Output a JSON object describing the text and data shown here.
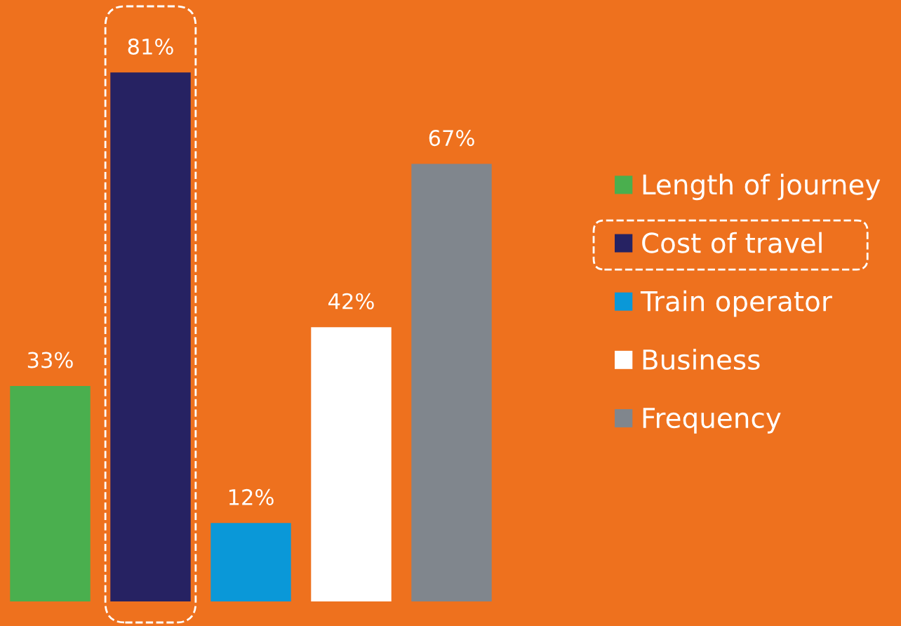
{
  "chart_data": {
    "type": "bar",
    "categories": [
      null,
      null,
      null,
      null,
      null
    ],
    "legend": "right",
    "stacked": true,
    "series": [
      {
        "name": "Length of journey",
        "color": "#4aaf4e",
        "values": [
          33,
          null,
          null,
          null,
          null
        ],
        "value_labels": [
          "33%",
          null,
          null,
          null,
          null
        ]
      },
      {
        "name": "Cost of travel",
        "color": "#262262",
        "values": [
          null,
          81,
          null,
          null,
          null
        ],
        "value_labels": [
          null,
          "81%",
          null,
          null,
          null
        ]
      },
      {
        "name": "Train operator",
        "color": "#0a98d8",
        "values": [
          null,
          null,
          12,
          null,
          null
        ],
        "value_labels": [
          null,
          null,
          "12%",
          null,
          null
        ]
      },
      {
        "name": "Business",
        "color": "#ffffff",
        "values": [
          null,
          null,
          null,
          42,
          null
        ],
        "value_labels": [
          null,
          null,
          null,
          "42%",
          null
        ]
      },
      {
        "name": "Frequency",
        "color": "#80868d",
        "values": [
          null,
          null,
          null,
          null,
          67
        ],
        "value_labels": [
          null,
          null,
          null,
          null,
          "67%"
        ]
      }
    ]
  }
}
